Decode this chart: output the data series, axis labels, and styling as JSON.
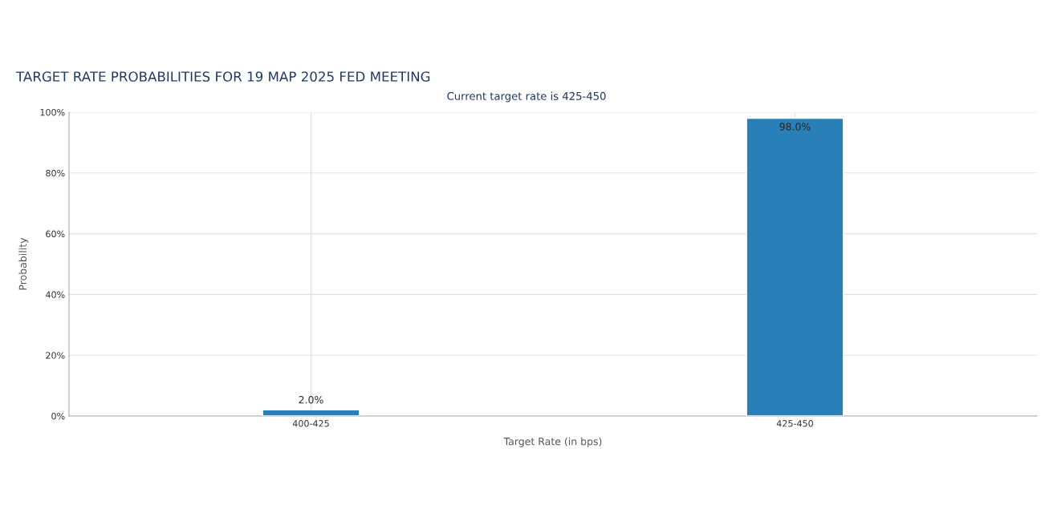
{
  "chart_data": {
    "type": "bar",
    "title": "TARGET RATE PROBABILITIES FOR 19 MAP 2025 FED MEETING",
    "subtitle": "Current target rate is 425-450",
    "xlabel": "Target Rate (in bps)",
    "ylabel": "Probability",
    "categories": [
      "400-425",
      "425-450"
    ],
    "values": [
      2.0,
      98.0
    ],
    "color": "#2980b9",
    "value_labels": [
      "2.0%",
      "98.0%"
    ],
    "ylim": [
      0,
      100
    ],
    "yticks": [
      {
        "value": 0,
        "label": "0%"
      },
      {
        "value": 20,
        "label": "20%"
      },
      {
        "value": 40,
        "label": "40%"
      },
      {
        "value": 60,
        "label": "60%"
      },
      {
        "value": 80,
        "label": "80%"
      },
      {
        "value": 100,
        "label": "100%"
      }
    ],
    "grid": true
  }
}
